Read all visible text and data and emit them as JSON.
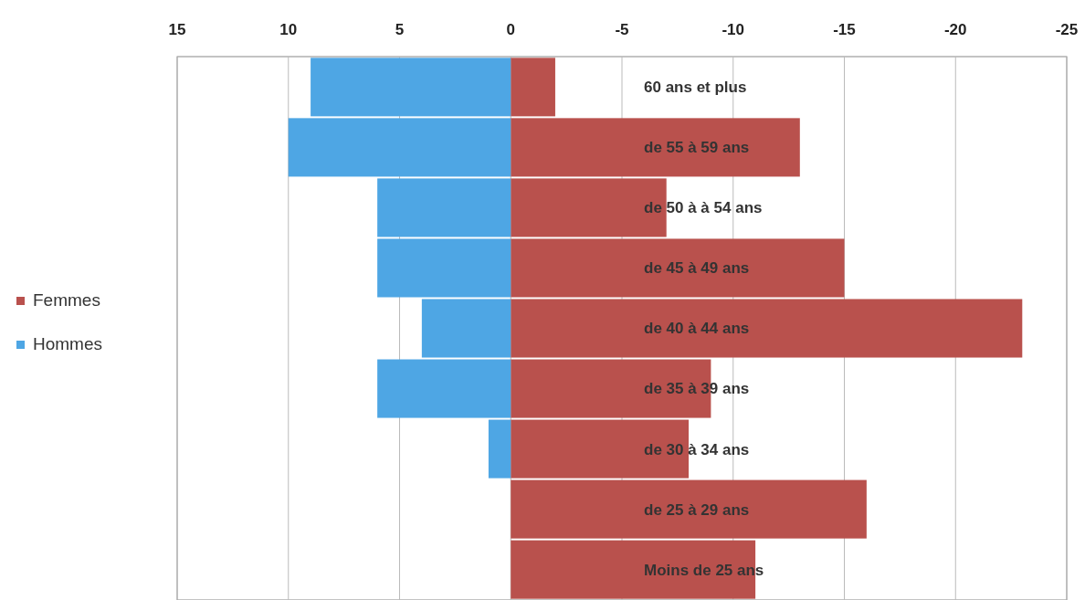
{
  "chart_data": {
    "type": "bar",
    "orientation": "horizontal",
    "stacked": true,
    "categories": [
      "60 ans et plus",
      "de 55 à 59 ans",
      "de 50 à à 54 ans",
      "de 45 à 49 ans",
      "de 40 à 44 ans",
      "de 35 à 39 ans",
      "de 30 à 34 ans",
      "de 25 à 29 ans",
      "Moins de 25 ans"
    ],
    "series": [
      {
        "name": "Femmes",
        "color": "#b9514d",
        "values": [
          -2,
          -13,
          -7,
          -15,
          -23,
          -9,
          -8,
          -16,
          -11
        ]
      },
      {
        "name": "Hommes",
        "color": "#4ea6e4",
        "values": [
          9,
          10,
          6,
          6,
          4,
          6,
          1,
          0,
          0
        ]
      }
    ],
    "xlim": [
      15,
      -25
    ],
    "xticks": [
      15,
      10,
      5,
      0,
      -5,
      -10,
      -15,
      -20,
      -25
    ],
    "grid": "x",
    "legend": "left"
  }
}
